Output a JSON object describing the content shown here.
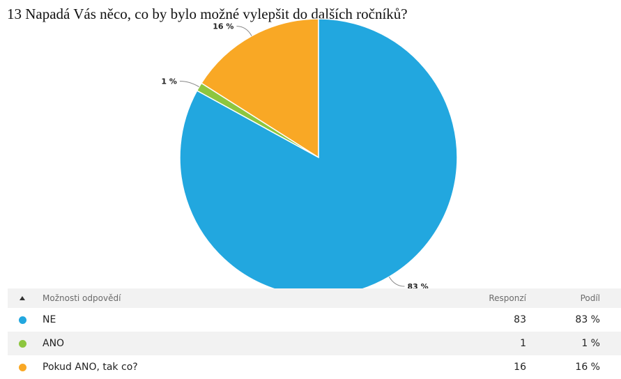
{
  "title": "13 Napadá Vás něco, co by bylo možné vylepšit do dalších ročníků?",
  "chart_data": {
    "type": "pie",
    "categories": [
      "NE",
      "ANO",
      "Pokud ANO, tak co?"
    ],
    "values": [
      83,
      1,
      16
    ],
    "labels": [
      "83 %",
      "1 %",
      "16 %"
    ],
    "colors": [
      "#22a7df",
      "#8dc63f",
      "#f9a825"
    ],
    "legend": "table-below"
  },
  "table": {
    "headers": {
      "option": "Možnosti odpovědí",
      "count": "Responzí",
      "share": "Podíl"
    },
    "rows": [
      {
        "label": "NE",
        "count": "83",
        "share": "83 %",
        "color": "#22a7df"
      },
      {
        "label": "ANO",
        "count": "1",
        "share": "1 %",
        "color": "#8dc63f"
      },
      {
        "label": "Pokud ANO, tak co?",
        "count": "16",
        "share": "16 %",
        "color": "#f9a825"
      }
    ]
  }
}
